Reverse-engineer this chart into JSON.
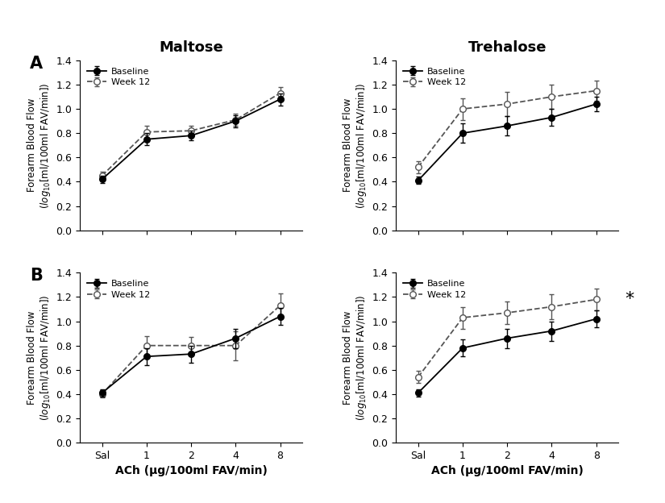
{
  "x_positions": [
    0,
    1,
    2,
    3,
    4
  ],
  "x_labels": [
    "Sal",
    "1",
    "2",
    "4",
    "8"
  ],
  "xlabel": "ACh (μg/100ml FAV/min)",
  "ylabel_line1": "Forearm Blood Flow",
  "ylabel_line2": "(log₁₀[ml/100ml FAV/min])",
  "ylim": [
    0.0,
    1.4
  ],
  "yticks": [
    0.0,
    0.2,
    0.4,
    0.6,
    0.8,
    1.0,
    1.2,
    1.4
  ],
  "col_titles": [
    "Maltose",
    "Trehalose"
  ],
  "row_labels": [
    "A",
    "B"
  ],
  "panels": {
    "A_maltose": {
      "baseline_y": [
        0.42,
        0.75,
        0.78,
        0.9,
        1.08
      ],
      "baseline_se": [
        0.03,
        0.05,
        0.04,
        0.05,
        0.05
      ],
      "week12_y": [
        0.45,
        0.81,
        0.82,
        0.91,
        1.13
      ],
      "week12_se": [
        0.03,
        0.05,
        0.04,
        0.05,
        0.05
      ]
    },
    "A_trehalose": {
      "baseline_y": [
        0.41,
        0.8,
        0.86,
        0.93,
        1.04
      ],
      "baseline_se": [
        0.03,
        0.08,
        0.08,
        0.07,
        0.06
      ],
      "week12_y": [
        0.52,
        1.0,
        1.04,
        1.1,
        1.15
      ],
      "week12_se": [
        0.05,
        0.09,
        0.1,
        0.1,
        0.08
      ]
    },
    "B_maltose": {
      "baseline_y": [
        0.41,
        0.71,
        0.73,
        0.86,
        1.04
      ],
      "baseline_se": [
        0.03,
        0.07,
        0.07,
        0.08,
        0.07
      ],
      "week12_y": [
        0.4,
        0.8,
        0.8,
        0.8,
        1.13
      ],
      "week12_se": [
        0.03,
        0.08,
        0.07,
        0.12,
        0.1
      ]
    },
    "B_trehalose": {
      "baseline_y": [
        0.41,
        0.78,
        0.86,
        0.92,
        1.02
      ],
      "baseline_se": [
        0.03,
        0.07,
        0.08,
        0.08,
        0.07
      ],
      "week12_y": [
        0.54,
        1.03,
        1.07,
        1.12,
        1.18
      ],
      "week12_se": [
        0.05,
        0.09,
        0.09,
        0.1,
        0.09
      ]
    }
  },
  "star_panel": "B_trehalose",
  "legend_baseline": "Baseline",
  "legend_week12": "Week 12",
  "baseline_color": "#000000",
  "week12_color": "#555555",
  "background_color": "#ffffff"
}
